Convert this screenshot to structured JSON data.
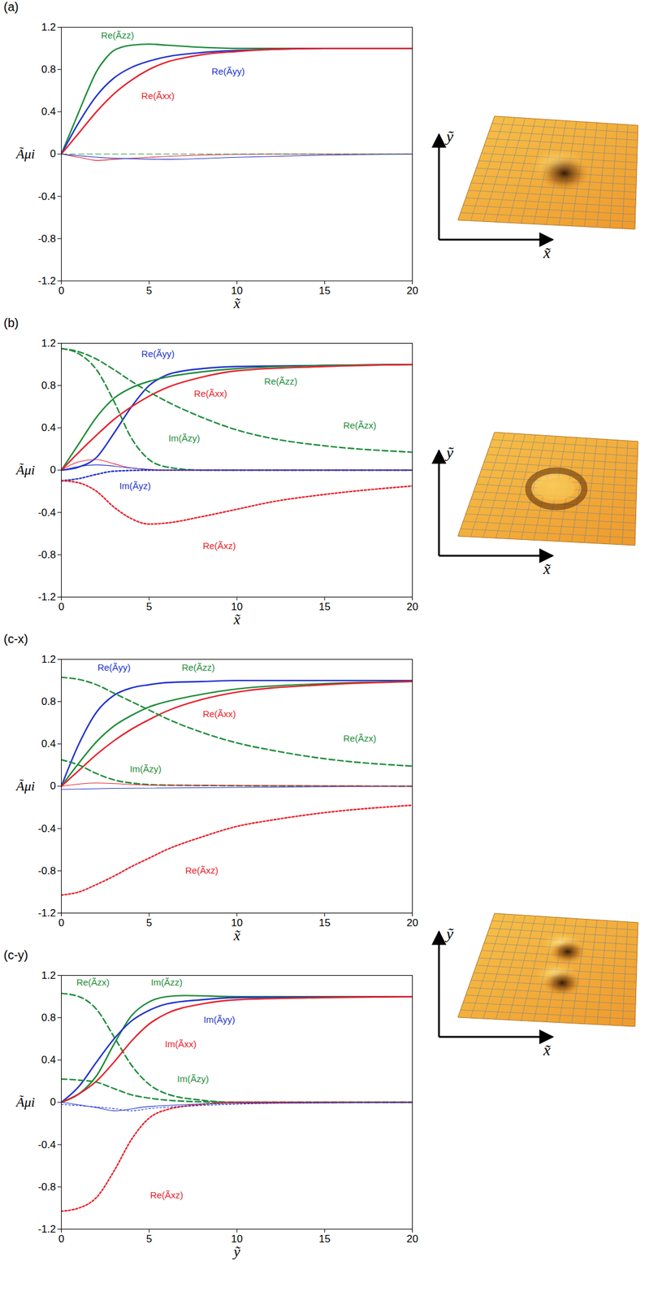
{
  "chart_data": [
    {
      "type": "line",
      "title": "(a)",
      "xlabel": "x̃",
      "ylabel": "Ãμi",
      "xlim": [
        0,
        20
      ],
      "xticks": [
        0,
        5,
        10,
        15,
        20
      ],
      "ylim": [
        -1.2,
        1.2
      ],
      "yticks": [
        -1.2,
        -0.8,
        -0.4,
        0,
        0.4,
        0.8,
        1.2
      ],
      "series": [
        {
          "name": "Re(Ãzz)",
          "color": "#1e8c3a",
          "line_style": "solid",
          "x": [
            0,
            0.5,
            1,
            1.5,
            2,
            2.5,
            3,
            4,
            5,
            6,
            8,
            10,
            20
          ],
          "values": [
            0,
            0.2,
            0.4,
            0.6,
            0.78,
            0.9,
            0.98,
            1.03,
            1.04,
            1.03,
            1.01,
            1.0,
            1.0
          ]
        },
        {
          "name": "Re(Ãyy)",
          "color": "#2233cc",
          "line_style": "solid",
          "x": [
            0,
            1,
            2,
            3,
            4,
            5,
            6,
            8,
            10,
            12,
            15,
            20
          ],
          "values": [
            0,
            0.3,
            0.55,
            0.72,
            0.82,
            0.88,
            0.92,
            0.96,
            0.98,
            0.99,
            1.0,
            1.0
          ]
        },
        {
          "name": "Re(Ãxx)",
          "color": "#e8202a",
          "line_style": "solid",
          "x": [
            0,
            1,
            2,
            3,
            4,
            5,
            6,
            7,
            8,
            10,
            12,
            15,
            20
          ],
          "values": [
            0,
            0.2,
            0.4,
            0.57,
            0.7,
            0.8,
            0.87,
            0.91,
            0.94,
            0.97,
            0.99,
            1.0,
            1.0
          ]
        },
        {
          "color": "#e8202a",
          "line_style": "solid",
          "x": [
            0,
            1,
            2,
            3,
            5,
            8,
            12,
            20
          ],
          "values": [
            0,
            -0.03,
            -0.06,
            -0.05,
            -0.03,
            -0.01,
            0,
            0
          ]
        },
        {
          "color": "#2233cc",
          "line_style": "solid",
          "x": [
            0,
            3,
            6,
            10,
            15,
            20
          ],
          "values": [
            0,
            -0.04,
            -0.05,
            -0.03,
            -0.01,
            0
          ]
        },
        {
          "color": "#1e8c3a",
          "line_style": "dashed",
          "x": [
            0,
            20
          ],
          "values": [
            0,
            0
          ]
        }
      ]
    },
    {
      "type": "line",
      "title": "(b)",
      "xlabel": "x̃",
      "ylabel": "Ãμi",
      "xlim": [
        0,
        20
      ],
      "xticks": [
        0,
        5,
        10,
        15,
        20
      ],
      "ylim": [
        -1.2,
        1.2
      ],
      "yticks": [
        -1.2,
        -0.8,
        -0.4,
        0,
        0.4,
        0.8,
        1.2
      ],
      "series": [
        {
          "name": "Re(Ãyy)",
          "color": "#2233cc",
          "line_style": "solid",
          "x": [
            0,
            1,
            2,
            3,
            4,
            5,
            6,
            7,
            8,
            10,
            15,
            20
          ],
          "values": [
            0,
            0.03,
            0.12,
            0.35,
            0.6,
            0.8,
            0.9,
            0.94,
            0.96,
            0.98,
            0.99,
            1.0
          ]
        },
        {
          "name": "Re(Ãzz)",
          "color": "#1e8c3a",
          "line_style": "solid",
          "x": [
            0,
            1,
            2,
            3,
            4,
            5,
            6,
            8,
            10,
            15,
            20
          ],
          "values": [
            0,
            0.25,
            0.5,
            0.68,
            0.78,
            0.84,
            0.88,
            0.93,
            0.96,
            0.99,
            1.0
          ]
        },
        {
          "name": "Re(Ãxx)",
          "color": "#e8202a",
          "line_style": "solid",
          "x": [
            0,
            1,
            2,
            3,
            4,
            5,
            6,
            8,
            10,
            15,
            20
          ],
          "values": [
            0,
            0.17,
            0.33,
            0.48,
            0.6,
            0.7,
            0.78,
            0.88,
            0.94,
            0.98,
            1.0
          ]
        },
        {
          "name": "Re(Ãzx)",
          "color": "#1e8c3a",
          "line_style": "dashed",
          "x": [
            0,
            1,
            2,
            3,
            4,
            5,
            6,
            8,
            10,
            12,
            15,
            20
          ],
          "values": [
            1.15,
            1.12,
            1.05,
            0.95,
            0.84,
            0.74,
            0.65,
            0.5,
            0.38,
            0.3,
            0.23,
            0.17
          ]
        },
        {
          "name": "Im(Ãzy)",
          "color": "#1e8c3a",
          "line_style": "dashed",
          "x": [
            0,
            1,
            2,
            3,
            4,
            5,
            6,
            8,
            20
          ],
          "values": [
            1.15,
            1.1,
            0.95,
            0.65,
            0.3,
            0.1,
            0.03,
            0,
            0
          ]
        },
        {
          "name": "Im(Ãyz)",
          "color": "#2233cc",
          "line_style": "dotted",
          "x": [
            0,
            1,
            2,
            3,
            5,
            20
          ],
          "values": [
            -0.1,
            -0.08,
            -0.04,
            -0.01,
            0,
            0
          ]
        },
        {
          "name": "Re(Ãxz)",
          "color": "#e8202a",
          "line_style": "dotted",
          "x": [
            0,
            1,
            2,
            3,
            4,
            5,
            6,
            8,
            10,
            12,
            15,
            20
          ],
          "values": [
            -0.1,
            -0.12,
            -0.2,
            -0.35,
            -0.46,
            -0.51,
            -0.5,
            -0.44,
            -0.37,
            -0.3,
            -0.23,
            -0.15
          ]
        },
        {
          "color": "#e8202a",
          "line_style": "solid",
          "x": [
            0,
            1,
            2,
            3,
            4,
            6,
            20
          ],
          "values": [
            0,
            0.08,
            0.1,
            0.06,
            0.02,
            0,
            0
          ]
        },
        {
          "color": "#2233cc",
          "line_style": "solid",
          "x": [
            0,
            2,
            4,
            6,
            20
          ],
          "values": [
            0,
            0.05,
            0.02,
            0,
            0
          ]
        }
      ]
    },
    {
      "type": "line",
      "title": "(c-x)",
      "xlabel": "x̃",
      "ylabel": "Ãμi",
      "xlim": [
        0,
        20
      ],
      "xticks": [
        0,
        5,
        10,
        15,
        20
      ],
      "ylim": [
        -1.2,
        1.2
      ],
      "yticks": [
        -1.2,
        -0.8,
        -0.4,
        0,
        0.4,
        0.8,
        1.2
      ],
      "series": [
        {
          "name": "Re(Ãyy)",
          "color": "#2233cc",
          "line_style": "solid",
          "x": [
            0,
            1,
            2,
            3,
            4,
            5,
            6,
            8,
            10,
            20
          ],
          "values": [
            0,
            0.4,
            0.7,
            0.86,
            0.93,
            0.96,
            0.98,
            0.99,
            1.0,
            1.0
          ]
        },
        {
          "name": "Re(Ãzz)",
          "color": "#1e8c3a",
          "line_style": "solid",
          "x": [
            0,
            1,
            2,
            3,
            4,
            5,
            6,
            8,
            10,
            15,
            20
          ],
          "values": [
            0,
            0.22,
            0.42,
            0.57,
            0.67,
            0.75,
            0.8,
            0.87,
            0.92,
            0.97,
            0.99
          ]
        },
        {
          "name": "Re(Ãxx)",
          "color": "#e8202a",
          "line_style": "solid",
          "x": [
            0,
            1,
            2,
            3,
            4,
            5,
            6,
            8,
            10,
            15,
            20
          ],
          "values": [
            0,
            0.15,
            0.3,
            0.43,
            0.54,
            0.63,
            0.71,
            0.82,
            0.89,
            0.96,
            0.99
          ]
        },
        {
          "name": "Re(Ãzx)",
          "color": "#1e8c3a",
          "line_style": "dashed",
          "x": [
            0,
            1,
            2,
            3,
            4,
            5,
            6,
            8,
            10,
            12,
            15,
            20
          ],
          "values": [
            1.03,
            1.01,
            0.96,
            0.88,
            0.8,
            0.72,
            0.64,
            0.51,
            0.41,
            0.34,
            0.26,
            0.19
          ]
        },
        {
          "name": "Im(Ãzy)",
          "color": "#1e8c3a",
          "line_style": "dashed",
          "x": [
            0,
            1,
            2,
            3,
            4,
            6,
            20
          ],
          "values": [
            0.25,
            0.2,
            0.12,
            0.06,
            0.03,
            0.01,
            0
          ]
        },
        {
          "name": "Re(Ãxz)",
          "color": "#e8202a",
          "line_style": "dotted",
          "x": [
            0,
            1,
            2,
            3,
            4,
            5,
            6,
            8,
            10,
            12,
            15,
            20
          ],
          "values": [
            -1.03,
            -1.0,
            -0.93,
            -0.85,
            -0.76,
            -0.68,
            -0.6,
            -0.48,
            -0.38,
            -0.32,
            -0.25,
            -0.18
          ]
        },
        {
          "color": "#2233cc",
          "line_style": "solid",
          "x": [
            0,
            3,
            20
          ],
          "values": [
            -0.03,
            -0.02,
            0
          ]
        },
        {
          "color": "#e8202a",
          "line_style": "solid",
          "x": [
            0,
            2,
            5,
            20
          ],
          "values": [
            0,
            0.03,
            0.01,
            0
          ]
        }
      ]
    },
    {
      "type": "line",
      "title": "(c-y)",
      "xlabel": "ỹ",
      "ylabel": "Ãμi",
      "xlim": [
        0,
        20
      ],
      "xticks": [
        0,
        5,
        10,
        15,
        20
      ],
      "ylim": [
        -1.2,
        1.2
      ],
      "yticks": [
        -1.2,
        -0.8,
        -0.4,
        0,
        0.4,
        0.8,
        1.2
      ],
      "series": [
        {
          "name": "Re(Ãzx)",
          "color": "#1e8c3a",
          "line_style": "dashed",
          "x": [
            0,
            1,
            2,
            3,
            4,
            5,
            6,
            8,
            10,
            20
          ],
          "values": [
            1.03,
            1.0,
            0.88,
            0.62,
            0.35,
            0.17,
            0.08,
            0.02,
            0,
            0
          ]
        },
        {
          "name": "Im(Ãzz)",
          "color": "#1e8c3a",
          "line_style": "solid",
          "x": [
            0,
            1,
            2,
            3,
            4,
            5,
            6,
            7,
            10,
            20
          ],
          "values": [
            0,
            0.08,
            0.25,
            0.55,
            0.82,
            0.95,
            1.0,
            1.01,
            1.0,
            1.0
          ]
        },
        {
          "name": "Im(Ãyy)",
          "color": "#2233cc",
          "line_style": "solid",
          "x": [
            0,
            1,
            2,
            3,
            4,
            5,
            6,
            8,
            10,
            20
          ],
          "values": [
            0,
            0.15,
            0.38,
            0.6,
            0.77,
            0.87,
            0.93,
            0.97,
            0.99,
            1.0
          ]
        },
        {
          "name": "Im(Ãxx)",
          "color": "#e8202a",
          "line_style": "solid",
          "x": [
            0,
            1,
            2,
            3,
            4,
            5,
            6,
            8,
            10,
            15,
            20
          ],
          "values": [
            0,
            0.08,
            0.2,
            0.38,
            0.58,
            0.74,
            0.84,
            0.93,
            0.97,
            0.99,
            1.0
          ]
        },
        {
          "name": "Im(Ãzy)",
          "color": "#1e8c3a",
          "line_style": "dashed",
          "x": [
            0,
            1,
            2,
            3,
            4,
            5,
            7,
            10,
            20
          ],
          "values": [
            0.22,
            0.21,
            0.19,
            0.13,
            0.07,
            0.04,
            0.01,
            0,
            0
          ]
        },
        {
          "name": "Re(Ãxz)",
          "color": "#e8202a",
          "line_style": "dotted",
          "x": [
            0,
            1,
            2,
            3,
            4,
            5,
            6,
            8,
            10,
            20
          ],
          "values": [
            -1.03,
            -1.0,
            -0.9,
            -0.65,
            -0.35,
            -0.15,
            -0.07,
            -0.02,
            0,
            0
          ]
        },
        {
          "color": "#2233cc",
          "line_style": "dotted",
          "x": [
            0,
            3,
            4,
            5,
            8,
            12,
            20
          ],
          "values": [
            -0.02,
            -0.06,
            -0.08,
            -0.06,
            -0.03,
            -0.01,
            0
          ]
        },
        {
          "color": "#2233cc",
          "line_style": "solid",
          "x": [
            0,
            2,
            3,
            5,
            10,
            20
          ],
          "values": [
            0,
            -0.05,
            -0.08,
            -0.04,
            -0.01,
            0
          ]
        }
      ]
    }
  ],
  "insets": [
    {
      "xlabel": "x̃",
      "ylabel": "ỹ"
    },
    {
      "xlabel": "x̃",
      "ylabel": "ỹ"
    },
    {
      "xlabel": "x̃",
      "ylabel": "ỹ"
    }
  ]
}
